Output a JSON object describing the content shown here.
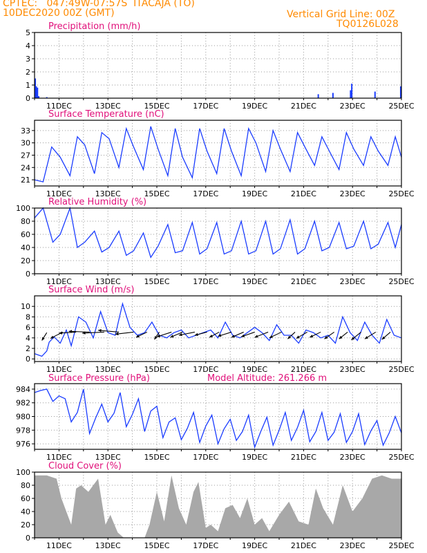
{
  "header": {
    "station": "CPTEC:   047:49W-07:57S  ITACAJA (TO)",
    "datetime": "10DEC2020 00Z (GMT)",
    "grid_note": "Vertical Grid Line: 00Z",
    "code": "TQ0126L028"
  },
  "colors": {
    "header": "#ff8a00",
    "title": "#e0107a",
    "line": "#1a3cff",
    "cloud": "#a8a8a8",
    "grid": "#9a9a9a"
  },
  "chart_data": [
    {
      "type": "bar",
      "title": "Precipitation (mm/h)",
      "x_labels": [
        "11DEC",
        "13DEC",
        "15DEC",
        "17DEC",
        "19DEC",
        "21DEC",
        "23DEC",
        "25DEC"
      ],
      "x_range": [
        0,
        15
      ],
      "ylim": [
        0,
        5
      ],
      "yticks": [
        0,
        1,
        2,
        3,
        4,
        5
      ],
      "grid": true,
      "series": [
        {
          "x": [
            0.03,
            0.07,
            0.12,
            0.17,
            0.5,
            11.6,
            12.2,
            12.92,
            12.97,
            13.92,
            14.97
          ],
          "values": [
            1.5,
            0.9,
            0.8,
            0.15,
            0.08,
            0.3,
            0.4,
            0.6,
            1.1,
            0.5,
            0.9
          ]
        }
      ]
    },
    {
      "type": "line",
      "title": "Surface Temperature (nC)",
      "x_labels": [
        "11DEC",
        "13DEC",
        "15DEC",
        "17DEC",
        "19DEC",
        "21DEC",
        "23DEC",
        "25DEC"
      ],
      "x_range": [
        0,
        15
      ],
      "ylim": [
        19.5,
        35.5
      ],
      "yticks": [
        21,
        24,
        27,
        30,
        33
      ],
      "grid": true,
      "series": [
        {
          "x": [
            0,
            0.35,
            0.7,
            1.05,
            1.45,
            1.75,
            2.05,
            2.45,
            2.75,
            3.05,
            3.45,
            3.75,
            4.05,
            4.45,
            4.75,
            5.05,
            5.45,
            5.75,
            6.05,
            6.45,
            6.75,
            7.05,
            7.45,
            7.75,
            8.05,
            8.45,
            8.75,
            9.05,
            9.45,
            9.75,
            10.05,
            10.45,
            10.75,
            11.05,
            11.45,
            11.75,
            12.05,
            12.45,
            12.75,
            13.05,
            13.45,
            13.75,
            14.05,
            14.45,
            14.75,
            15
          ],
          "values": [
            21,
            20.5,
            29,
            26.5,
            22,
            31.5,
            29.5,
            22.5,
            32.5,
            31,
            24,
            33.5,
            29,
            23.5,
            34,
            28.5,
            22,
            33.5,
            26.5,
            21.5,
            33.5,
            28,
            22.5,
            33.5,
            28,
            22,
            33.5,
            30,
            23,
            33,
            28.5,
            23,
            32.5,
            29,
            24.5,
            31.5,
            28,
            23.5,
            32.5,
            28.5,
            24.5,
            31.5,
            28,
            24.5,
            31.5,
            26.5
          ]
        }
      ]
    },
    {
      "type": "line",
      "title": "Relative Humidity (%)",
      "x_labels": [
        "11DEC",
        "13DEC",
        "15DEC",
        "17DEC",
        "19DEC",
        "21DEC",
        "23DEC",
        "25DEC"
      ],
      "x_range": [
        0,
        15
      ],
      "ylim": [
        0,
        100
      ],
      "yticks": [
        0,
        20,
        40,
        60,
        80,
        100
      ],
      "grid": true,
      "series": [
        {
          "x": [
            0,
            0.35,
            0.75,
            1.05,
            1.45,
            1.75,
            2.05,
            2.45,
            2.75,
            3.05,
            3.45,
            3.75,
            4.05,
            4.45,
            4.75,
            5.05,
            5.45,
            5.75,
            6.05,
            6.45,
            6.75,
            7.05,
            7.45,
            7.75,
            8.05,
            8.45,
            8.75,
            9.05,
            9.45,
            9.75,
            10.05,
            10.45,
            10.75,
            11.05,
            11.45,
            11.75,
            12.05,
            12.45,
            12.75,
            13.05,
            13.45,
            13.75,
            14.05,
            14.45,
            14.75,
            15
          ],
          "values": [
            85,
            100,
            48,
            60,
            100,
            40,
            48,
            65,
            33,
            40,
            65,
            28,
            35,
            62,
            25,
            42,
            75,
            32,
            35,
            78,
            30,
            38,
            78,
            30,
            35,
            80,
            30,
            35,
            80,
            30,
            38,
            82,
            30,
            38,
            80,
            35,
            40,
            78,
            38,
            42,
            80,
            38,
            45,
            78,
            40,
            75
          ]
        }
      ]
    },
    {
      "type": "line",
      "title": "Surface Wind (m/s)",
      "x_labels": [
        "11DEC",
        "13DEC",
        "15DEC",
        "17DEC",
        "19DEC",
        "21DEC",
        "23DEC",
        "25DEC"
      ],
      "x_range": [
        0,
        15
      ],
      "ylim": [
        -0.5,
        12
      ],
      "yticks": [
        0,
        2,
        4,
        6,
        8,
        10
      ],
      "grid": true,
      "series": [
        {
          "x": [
            0,
            0.3,
            0.5,
            0.6,
            0.8,
            1.05,
            1.3,
            1.5,
            1.8,
            2.1,
            2.4,
            2.7,
            3,
            3.3,
            3.6,
            3.9,
            4.2,
            4.5,
            4.8,
            5.1,
            5.4,
            5.7,
            6,
            6.3,
            6.6,
            6.9,
            7.2,
            7.5,
            7.8,
            8.1,
            8.4,
            8.7,
            9,
            9.3,
            9.6,
            9.9,
            10.2,
            10.5,
            10.8,
            11.1,
            11.4,
            11.7,
            12,
            12.3,
            12.6,
            12.9,
            13.2,
            13.5,
            13.8,
            14.1,
            14.4,
            14.7,
            15
          ],
          "values": [
            1,
            0.5,
            1.5,
            3.2,
            4.2,
            3,
            5.5,
            2.5,
            8,
            7,
            4,
            9,
            5,
            4.5,
            10.5,
            6,
            4.5,
            5,
            7,
            4.5,
            4,
            5,
            5.5,
            4,
            4.5,
            5,
            5.5,
            4,
            7,
            4.5,
            4,
            5,
            6,
            5,
            3.5,
            6.5,
            4.5,
            4.5,
            3,
            5.5,
            5,
            4,
            4.5,
            3,
            8,
            5,
            3.5,
            7,
            4.5,
            3,
            7.5,
            4.5,
            4
          ]
        }
      ],
      "wind_arrows": [
        {
          "x": 0.5,
          "y": 5.0,
          "dx": -0.2,
          "dy": -1.5
        },
        {
          "x": 1.15,
          "y": 5.1,
          "dx": -0.5,
          "dy": -1.2
        },
        {
          "x": 1.7,
          "y": 5.1,
          "dx": -0.7,
          "dy": -0.2
        },
        {
          "x": 2.25,
          "y": 5.1,
          "dx": -0.85,
          "dy": 0.15
        },
        {
          "x": 2.85,
          "y": 5.1,
          "dx": -0.9,
          "dy": -0.2
        },
        {
          "x": 3.45,
          "y": 5.1,
          "dx": -0.85,
          "dy": 0.35
        },
        {
          "x": 4.05,
          "y": 5.1,
          "dx": -0.75,
          "dy": -0.4
        },
        {
          "x": 4.6,
          "y": 5.1,
          "dx": -0.45,
          "dy": -1.0
        },
        {
          "x": 5.1,
          "y": 5.1,
          "dx": -0.2,
          "dy": -1.4
        },
        {
          "x": 5.6,
          "y": 5.1,
          "dx": -0.6,
          "dy": -0.9
        },
        {
          "x": 6.05,
          "y": 5.1,
          "dx": -0.5,
          "dy": -1.0
        },
        {
          "x": 6.55,
          "y": 5.1,
          "dx": -0.65,
          "dy": -0.6
        },
        {
          "x": 7.05,
          "y": 5.1,
          "dx": -0.5,
          "dy": -0.6
        },
        {
          "x": 7.55,
          "y": 5.1,
          "dx": -0.4,
          "dy": -1.0
        },
        {
          "x": 8.05,
          "y": 5.1,
          "dx": -0.55,
          "dy": -0.8
        },
        {
          "x": 8.55,
          "y": 5.1,
          "dx": -0.5,
          "dy": -1.0
        },
        {
          "x": 9.0,
          "y": 5.1,
          "dx": -0.55,
          "dy": -0.9
        },
        {
          "x": 9.55,
          "y": 5.1,
          "dx": -0.55,
          "dy": -1.0
        },
        {
          "x": 10.1,
          "y": 5.1,
          "dx": -0.5,
          "dy": -1.1
        },
        {
          "x": 10.65,
          "y": 5.1,
          "dx": -0.3,
          "dy": -1.3
        },
        {
          "x": 11.15,
          "y": 5.1,
          "dx": -0.45,
          "dy": -1.2
        },
        {
          "x": 11.7,
          "y": 5.1,
          "dx": -0.45,
          "dy": -1.0
        },
        {
          "x": 12.25,
          "y": 5.1,
          "dx": -0.4,
          "dy": -1.3
        },
        {
          "x": 12.8,
          "y": 5.1,
          "dx": -0.35,
          "dy": -1.3
        },
        {
          "x": 13.35,
          "y": 5.1,
          "dx": -0.4,
          "dy": -1.5
        },
        {
          "x": 13.95,
          "y": 5.1,
          "dx": -0.45,
          "dy": -1.3
        },
        {
          "x": 14.55,
          "y": 5.1,
          "dx": -0.35,
          "dy": -1.4
        }
      ]
    },
    {
      "type": "line",
      "title": "Surface Pressure (hPa)",
      "subtitle": "Model Altitude: 261.266 m",
      "x_labels": [
        "11DEC",
        "13DEC",
        "15DEC",
        "17DEC",
        "19DEC",
        "21DEC",
        "23DEC",
        "25DEC"
      ],
      "x_range": [
        0,
        15
      ],
      "ylim": [
        975.2,
        984.8
      ],
      "yticks": [
        976,
        978,
        980,
        982,
        984
      ],
      "grid": true,
      "series": [
        {
          "x": [
            0,
            0.25,
            0.5,
            0.75,
            1.0,
            1.25,
            1.5,
            1.75,
            2.0,
            2.25,
            2.5,
            2.75,
            3.0,
            3.25,
            3.5,
            3.75,
            4.0,
            4.25,
            4.5,
            4.75,
            5.0,
            5.25,
            5.5,
            5.75,
            6.0,
            6.25,
            6.5,
            6.75,
            7.0,
            7.25,
            7.5,
            7.75,
            8.0,
            8.25,
            8.5,
            8.75,
            9.0,
            9.25,
            9.5,
            9.75,
            10.0,
            10.25,
            10.5,
            10.75,
            11.0,
            11.25,
            11.5,
            11.75,
            12.0,
            12.25,
            12.5,
            12.75,
            13.0,
            13.25,
            13.5,
            13.75,
            14.0,
            14.25,
            14.5,
            14.75,
            15
          ],
          "values": [
            983.5,
            983.8,
            984.0,
            982.2,
            983.0,
            982.6,
            979.2,
            980.6,
            984.0,
            977.5,
            979.8,
            981.8,
            979.2,
            980.5,
            983.5,
            978.5,
            980.3,
            982.6,
            977.8,
            980.8,
            981.5,
            976.9,
            979.2,
            979.8,
            976.6,
            978.3,
            980.6,
            976.2,
            978.6,
            980.2,
            976.0,
            978.2,
            979.6,
            976.5,
            977.8,
            980.2,
            975.5,
            977.8,
            979.9,
            975.8,
            978.0,
            980.6,
            976.5,
            978.4,
            980.9,
            976.3,
            977.8,
            980.6,
            976.5,
            977.7,
            980.4,
            976.2,
            977.8,
            980.4,
            975.9,
            977.9,
            979.4,
            975.8,
            977.6,
            980.0,
            977.6
          ]
        }
      ]
    },
    {
      "type": "area",
      "title": "Cloud Cover (%)",
      "x_labels": [
        "11DEC",
        "13DEC",
        "15DEC",
        "17DEC",
        "19DEC",
        "21DEC",
        "23DEC",
        "25DEC"
      ],
      "x_range": [
        0,
        15
      ],
      "ylim": [
        0,
        100
      ],
      "yticks": [
        0,
        20,
        40,
        60,
        80,
        100
      ],
      "grid": true,
      "series": [
        {
          "x": [
            0,
            0.5,
            0.9,
            1.1,
            1.5,
            1.7,
            1.9,
            2.2,
            2.6,
            2.9,
            3.1,
            3.4,
            3.65,
            3.9,
            4.2,
            4.5,
            4.7,
            5.0,
            5.3,
            5.6,
            5.9,
            6.2,
            6.5,
            6.7,
            7.0,
            7.2,
            7.5,
            7.8,
            8.1,
            8.4,
            8.7,
            9.0,
            9.3,
            9.6,
            10.0,
            10.4,
            10.8,
            11.2,
            11.5,
            11.8,
            12.2,
            12.6,
            13.0,
            13.4,
            13.8,
            14.2,
            14.6,
            15
          ],
          "values": [
            95,
            95,
            90,
            60,
            20,
            75,
            80,
            70,
            90,
            20,
            35,
            8,
            0,
            0,
            0,
            0,
            20,
            70,
            25,
            95,
            45,
            20,
            70,
            85,
            15,
            20,
            10,
            45,
            50,
            30,
            60,
            20,
            30,
            10,
            35,
            55,
            25,
            20,
            75,
            45,
            20,
            80,
            40,
            60,
            90,
            95,
            90,
            90
          ]
        }
      ]
    }
  ]
}
